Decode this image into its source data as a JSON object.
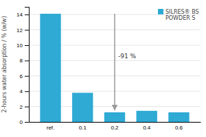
{
  "chart_data": {
    "type": "bar",
    "categories": [
      "ref.",
      "0.1",
      "0.2",
      "0.4",
      "0.6"
    ],
    "series": [
      {
        "name": "SILRES® BS\nPOWDER S",
        "color": "#2eaad4",
        "values": [
          14.1,
          3.8,
          1.25,
          1.45,
          1.25
        ]
      }
    ],
    "ylabel": "2-hours water absorption / % (w/w)",
    "ylim": [
      0,
      15
    ],
    "yticks": [
      0,
      2,
      4,
      6,
      8,
      10,
      12,
      14
    ],
    "grid": true,
    "legend": "upper right",
    "annotations": [
      {
        "text": "-91 %",
        "x": "0.2",
        "y": 8.5
      }
    ],
    "arrows": [
      {
        "x": "0.2",
        "from": 14.1,
        "to": 1.55
      }
    ]
  }
}
